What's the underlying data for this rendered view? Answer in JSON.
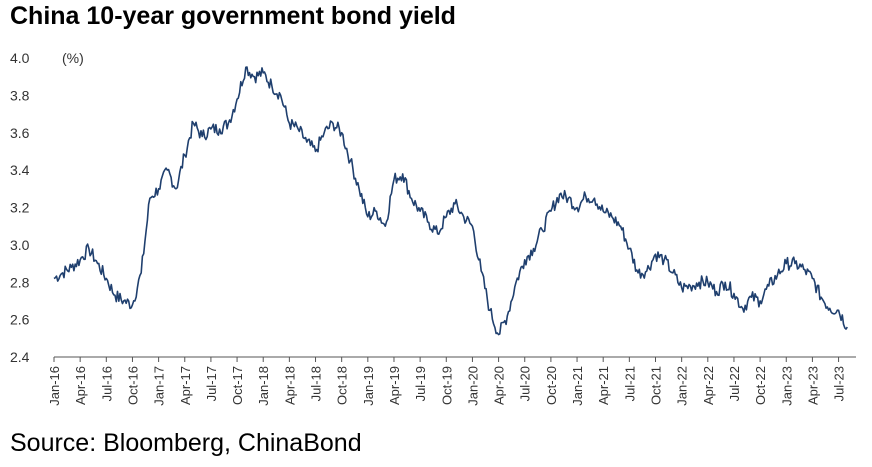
{
  "title": "China 10-year government bond yield",
  "source": "Source: Bloomberg, ChinaBond",
  "chart_data": {
    "type": "line",
    "title": "China 10-year government bond yield",
    "unit_label": "(%)",
    "ylim": [
      2.4,
      4.0
    ],
    "yticks": [
      2.4,
      2.6,
      2.8,
      3.0,
      3.2,
      3.4,
      3.6,
      3.8,
      4.0
    ],
    "xlim": [
      "2016-01",
      "2023-09"
    ],
    "x_tick_labels": [
      "Jan-16",
      "Apr-16",
      "Jul-16",
      "Oct-16",
      "Jan-17",
      "Apr-17",
      "Jul-17",
      "Oct-17",
      "Jan-18",
      "Apr-18",
      "Jul-18",
      "Oct-18",
      "Jan-19",
      "Apr-19",
      "Jul-19",
      "Oct-19",
      "Jan-20",
      "Apr-20",
      "Jul-20",
      "Oct-20",
      "Jan-21",
      "Apr-21",
      "Jul-21",
      "Oct-21",
      "Jan-22",
      "Apr-22",
      "Jul-22",
      "Oct-22",
      "Jan-23",
      "Apr-23",
      "Jul-23"
    ],
    "grid": false,
    "line_color": "#1f3f6e",
    "series": [
      {
        "name": "",
        "x": [
          "2016-01",
          "2016-02",
          "2016-03",
          "2016-04",
          "2016-05",
          "2016-06",
          "2016-07",
          "2016-08",
          "2016-09",
          "2016-10",
          "2016-11",
          "2016-12",
          "2017-01",
          "2017-02",
          "2017-03",
          "2017-04",
          "2017-05",
          "2017-06",
          "2017-07",
          "2017-08",
          "2017-09",
          "2017-10",
          "2017-11",
          "2017-12",
          "2018-01",
          "2018-02",
          "2018-03",
          "2018-04",
          "2018-05",
          "2018-06",
          "2018-07",
          "2018-08",
          "2018-09",
          "2018-10",
          "2018-11",
          "2018-12",
          "2019-01",
          "2019-02",
          "2019-03",
          "2019-04",
          "2019-05",
          "2019-06",
          "2019-07",
          "2019-08",
          "2019-09",
          "2019-10",
          "2019-11",
          "2019-12",
          "2020-01",
          "2020-02",
          "2020-03",
          "2020-04",
          "2020-05",
          "2020-06",
          "2020-07",
          "2020-08",
          "2020-09",
          "2020-10",
          "2020-11",
          "2020-12",
          "2021-01",
          "2021-02",
          "2021-03",
          "2021-04",
          "2021-05",
          "2021-06",
          "2021-07",
          "2021-08",
          "2021-09",
          "2021-10",
          "2021-11",
          "2021-12",
          "2022-01",
          "2022-02",
          "2022-03",
          "2022-04",
          "2022-05",
          "2022-06",
          "2022-07",
          "2022-08",
          "2022-09",
          "2022-10",
          "2022-11",
          "2022-12",
          "2023-01",
          "2023-02",
          "2023-03",
          "2023-04",
          "2023-05",
          "2023-06",
          "2023-07",
          "2023-08"
        ],
        "values": [
          2.82,
          2.85,
          2.88,
          2.92,
          2.98,
          2.9,
          2.82,
          2.73,
          2.7,
          2.68,
          2.85,
          3.25,
          3.3,
          3.4,
          3.3,
          3.48,
          3.65,
          3.58,
          3.62,
          3.62,
          3.65,
          3.78,
          3.95,
          3.9,
          3.92,
          3.85,
          3.8,
          3.65,
          3.62,
          3.55,
          3.5,
          3.6,
          3.65,
          3.6,
          3.45,
          3.3,
          3.15,
          3.18,
          3.1,
          3.35,
          3.38,
          3.25,
          3.18,
          3.12,
          3.06,
          3.15,
          3.22,
          3.15,
          3.1,
          2.86,
          2.65,
          2.52,
          2.62,
          2.8,
          2.92,
          2.98,
          3.08,
          3.18,
          3.27,
          3.25,
          3.2,
          3.26,
          3.25,
          3.18,
          3.15,
          3.1,
          2.98,
          2.85,
          2.86,
          2.95,
          2.92,
          2.85,
          2.77,
          2.78,
          2.8,
          2.8,
          2.75,
          2.8,
          2.74,
          2.66,
          2.72,
          2.7,
          2.78,
          2.84,
          2.9,
          2.9,
          2.87,
          2.82,
          2.72,
          2.66,
          2.65,
          2.56
        ]
      }
    ]
  }
}
